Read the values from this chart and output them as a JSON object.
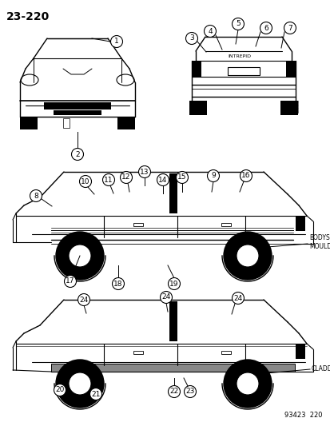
{
  "title": "23-220",
  "background_color": "#ffffff",
  "text_color": "#000000",
  "figure_width": 4.14,
  "figure_height": 5.33,
  "dpi": 100,
  "page_number": "93423  220",
  "bodyside_label": "BODYSIDE\nMOULDINGS",
  "cladding_label": "CLADDING",
  "intrepid_label": "INTREPID"
}
